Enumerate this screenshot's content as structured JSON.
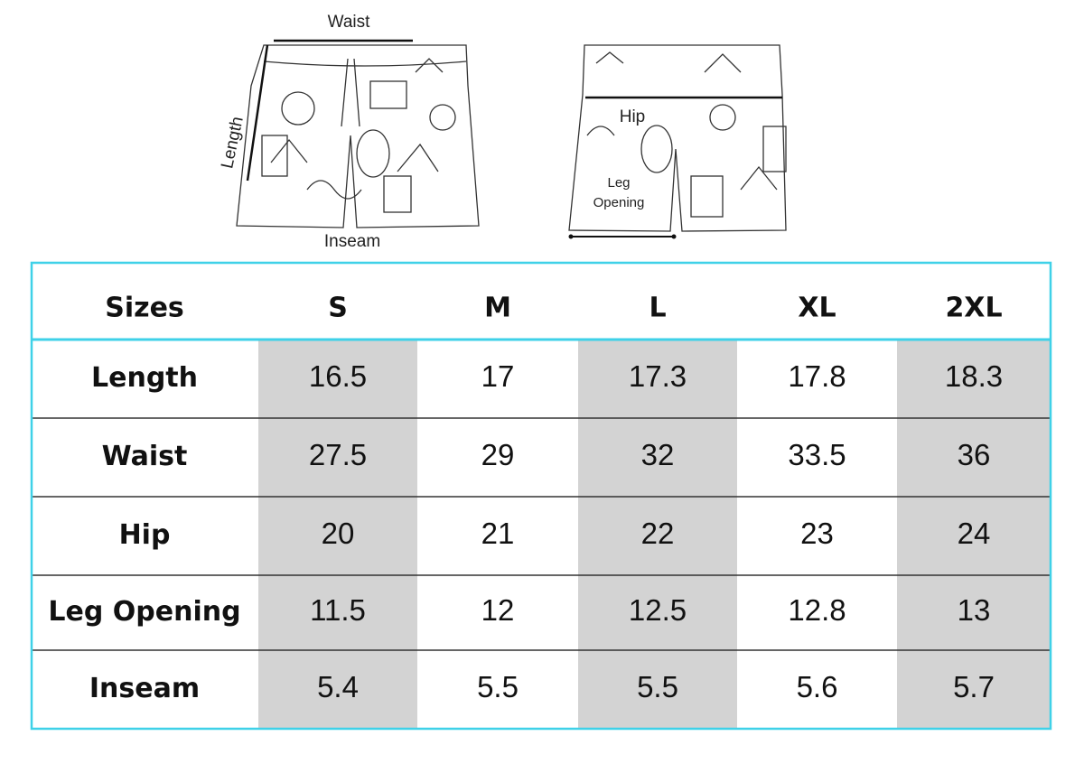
{
  "diagram": {
    "front": {
      "waist": "Waist",
      "length": "Length",
      "inseam": "Inseam"
    },
    "back": {
      "hip": "Hip",
      "leg_opening": [
        "Leg",
        "Opening"
      ]
    }
  },
  "table": {
    "header": [
      "Sizes",
      "S",
      "M",
      "L",
      "XL",
      "2XL"
    ],
    "rows": [
      [
        "Length",
        16.5,
        17,
        17.3,
        17.8,
        18.3
      ],
      [
        "Waist",
        27.5,
        29,
        32,
        33.5,
        36
      ],
      [
        "Hip",
        20,
        21,
        22,
        23,
        24
      ],
      [
        "Leg Opening",
        11.5,
        12,
        12.5,
        12.8,
        13
      ],
      [
        "Inseam",
        5.4,
        5.5,
        5.5,
        5.6,
        5.7
      ]
    ]
  }
}
